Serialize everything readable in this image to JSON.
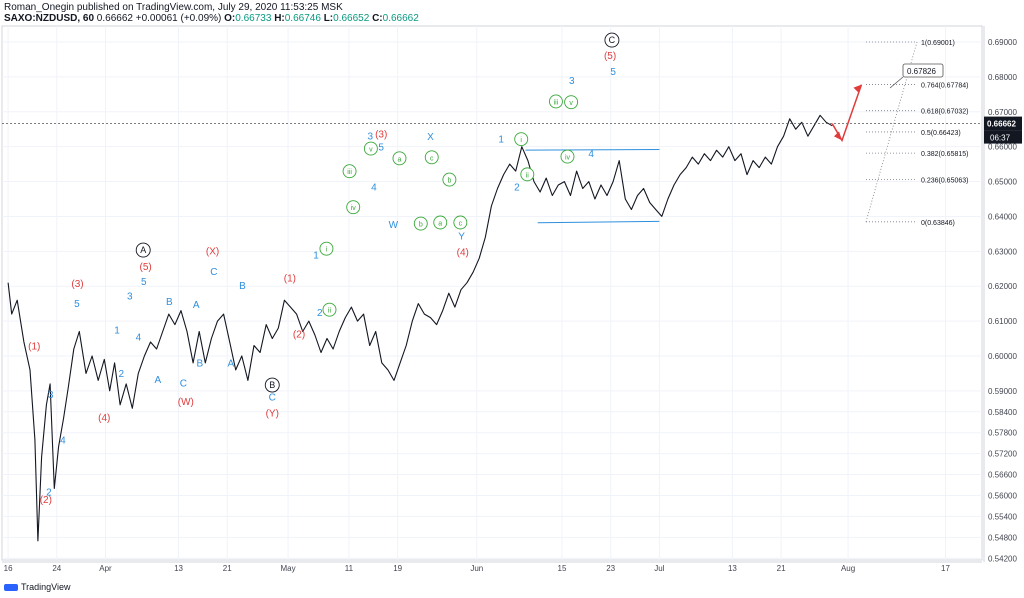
{
  "header": {
    "line1": "Roman_Onegin published on TradingView.com, July 29, 2020 11:53:25 MSK",
    "symbol": "SAXO:NZDUSD, 60",
    "last": "0.66662",
    "change": "+0.00061 (+0.09%)",
    "o_label": "O:",
    "o": "0.66733",
    "h_label": "H:",
    "h": "0.66746",
    "l_label": "L:",
    "l": "0.66652",
    "c_label": "C:",
    "c": "0.66662"
  },
  "watermark": {
    "text": "TradingView"
  },
  "colors": {
    "blue": "#2f8fde",
    "red": "#e03c3c",
    "green": "#3aa83a",
    "black": "#131722",
    "grid": "#f0f3fa",
    "axis": "#d1d4dc"
  },
  "chart_data": {
    "type": "line",
    "symbol": "SAXO:NZDUSD",
    "timeframe": "60",
    "ylim": [
      0.5415,
      0.6946
    ],
    "y_ticks": [
      "0.69000",
      "0.68000",
      "0.67000",
      "0.66000",
      "0.65000",
      "0.64000",
      "0.63000",
      "0.62000",
      "0.61000",
      "0.60000",
      "0.59000",
      "0.58400",
      "0.57800",
      "0.57200",
      "0.56600",
      "0.56000",
      "0.55400",
      "0.54800",
      "0.54200"
    ],
    "x_ticks": [
      {
        "label": "16",
        "t": 0
      },
      {
        "label": "24",
        "t": 8
      },
      {
        "label": "Apr",
        "t": 16
      },
      {
        "label": "13",
        "t": 28
      },
      {
        "label": "21",
        "t": 36
      },
      {
        "label": "May",
        "t": 46
      },
      {
        "label": "11",
        "t": 56
      },
      {
        "label": "19",
        "t": 64
      },
      {
        "label": "Jun",
        "t": 77
      },
      {
        "label": "15",
        "t": 91
      },
      {
        "label": "23",
        "t": 99
      },
      {
        "label": "Jul",
        "t": 107
      },
      {
        "label": "13",
        "t": 119
      },
      {
        "label": "21",
        "t": 127
      },
      {
        "label": "Aug",
        "t": 138
      },
      {
        "label": "17",
        "t": 154
      }
    ],
    "x_range": [
      -1,
      160
    ],
    "price_path": [
      [
        0,
        0.621
      ],
      [
        0.6,
        0.612
      ],
      [
        1.5,
        0.616
      ],
      [
        2.6,
        0.604
      ],
      [
        3.6,
        0.596
      ],
      [
        4.4,
        0.576
      ],
      [
        4.9,
        0.547
      ],
      [
        5.5,
        0.571
      ],
      [
        6.3,
        0.586
      ],
      [
        6.9,
        0.592
      ],
      [
        7.6,
        0.562
      ],
      [
        8.3,
        0.574
      ],
      [
        9.1,
        0.582
      ],
      [
        9.9,
        0.591
      ],
      [
        10.8,
        0.602
      ],
      [
        11.7,
        0.607
      ],
      [
        12.8,
        0.595
      ],
      [
        13.8,
        0.6
      ],
      [
        14.8,
        0.593
      ],
      [
        15.8,
        0.599
      ],
      [
        16.7,
        0.59
      ],
      [
        17.5,
        0.598
      ],
      [
        18.4,
        0.586
      ],
      [
        19.4,
        0.592
      ],
      [
        20.4,
        0.585
      ],
      [
        21.4,
        0.595
      ],
      [
        22.4,
        0.6
      ],
      [
        23.4,
        0.604
      ],
      [
        24.4,
        0.602
      ],
      [
        25.4,
        0.607
      ],
      [
        26.4,
        0.612
      ],
      [
        27.4,
        0.609
      ],
      [
        28.4,
        0.613
      ],
      [
        29.4,
        0.607
      ],
      [
        30.4,
        0.598
      ],
      [
        31.4,
        0.607
      ],
      [
        32.4,
        0.598
      ],
      [
        33.4,
        0.605
      ],
      [
        34.4,
        0.61
      ],
      [
        35.4,
        0.612
      ],
      [
        36.4,
        0.604
      ],
      [
        37.4,
        0.596
      ],
      [
        38.4,
        0.6
      ],
      [
        39.4,
        0.593
      ],
      [
        40.4,
        0.603
      ],
      [
        41.4,
        0.601
      ],
      [
        42.4,
        0.609
      ],
      [
        43.4,
        0.605
      ],
      [
        44.4,
        0.608
      ],
      [
        45.4,
        0.616
      ],
      [
        46.4,
        0.614
      ],
      [
        47.4,
        0.612
      ],
      [
        48.4,
        0.607
      ],
      [
        49.4,
        0.61
      ],
      [
        50.4,
        0.606
      ],
      [
        51.4,
        0.601
      ],
      [
        52.4,
        0.605
      ],
      [
        53.4,
        0.602
      ],
      [
        54.4,
        0.607
      ],
      [
        55.4,
        0.611
      ],
      [
        56.4,
        0.614
      ],
      [
        57.4,
        0.61
      ],
      [
        58.4,
        0.612
      ],
      [
        59.4,
        0.603
      ],
      [
        60.4,
        0.607
      ],
      [
        61.4,
        0.598
      ],
      [
        62.4,
        0.596
      ],
      [
        63.4,
        0.593
      ],
      [
        64.4,
        0.598
      ],
      [
        65.4,
        0.603
      ],
      [
        66.4,
        0.61
      ],
      [
        67.4,
        0.615
      ],
      [
        68.4,
        0.612
      ],
      [
        69.4,
        0.611
      ],
      [
        70.4,
        0.609
      ],
      [
        71.4,
        0.613
      ],
      [
        72.4,
        0.618
      ],
      [
        73.4,
        0.614
      ],
      [
        74.4,
        0.619
      ],
      [
        75.4,
        0.621
      ],
      [
        76.4,
        0.624
      ],
      [
        77.4,
        0.628
      ],
      [
        78.4,
        0.634
      ],
      [
        79.4,
        0.643
      ],
      [
        80.4,
        0.648
      ],
      [
        81.4,
        0.652
      ],
      [
        82.4,
        0.655
      ],
      [
        83.4,
        0.653
      ],
      [
        84.4,
        0.66
      ],
      [
        85.4,
        0.656
      ],
      [
        86.4,
        0.65
      ],
      [
        87.4,
        0.647
      ],
      [
        88.4,
        0.651
      ],
      [
        89.4,
        0.646
      ],
      [
        90.4,
        0.649
      ],
      [
        91.4,
        0.65
      ],
      [
        92.4,
        0.646
      ],
      [
        93.4,
        0.653
      ],
      [
        94.4,
        0.648
      ],
      [
        95.4,
        0.65
      ],
      [
        96.4,
        0.645
      ],
      [
        97.4,
        0.649
      ],
      [
        98.4,
        0.646
      ],
      [
        99.4,
        0.65
      ],
      [
        100.4,
        0.656
      ],
      [
        101.4,
        0.645
      ],
      [
        102.4,
        0.642
      ],
      [
        103.4,
        0.646
      ],
      [
        104.4,
        0.648
      ],
      [
        105.4,
        0.644
      ],
      [
        106.4,
        0.642
      ],
      [
        107.4,
        0.64
      ],
      [
        108.4,
        0.645
      ],
      [
        109.4,
        0.649
      ],
      [
        110.4,
        0.652
      ],
      [
        111.4,
        0.654
      ],
      [
        112.4,
        0.657
      ],
      [
        113.4,
        0.655
      ],
      [
        114.4,
        0.658
      ],
      [
        115.4,
        0.656
      ],
      [
        116.4,
        0.659
      ],
      [
        117.4,
        0.657
      ],
      [
        118.4,
        0.66
      ],
      [
        119.4,
        0.656
      ],
      [
        120.4,
        0.658
      ],
      [
        121.4,
        0.652
      ],
      [
        122.4,
        0.656
      ],
      [
        123.4,
        0.654
      ],
      [
        124.4,
        0.657
      ],
      [
        125.4,
        0.655
      ],
      [
        126.4,
        0.66
      ],
      [
        127.4,
        0.663
      ],
      [
        128.4,
        0.668
      ],
      [
        129.4,
        0.665
      ],
      [
        130.4,
        0.667
      ],
      [
        131.4,
        0.663
      ],
      [
        132.4,
        0.666
      ],
      [
        133.4,
        0.669
      ],
      [
        134.4,
        0.667
      ],
      [
        135.4,
        0.666
      ]
    ],
    "current_price": {
      "value": 0.66662,
      "label": "0.66662",
      "countdown": "06:37"
    },
    "projection": [
      [
        135.4,
        0.6666
      ],
      [
        137,
        0.6618
      ],
      [
        140.2,
        0.6778
      ]
    ],
    "target_label": "0.67826",
    "fib_levels": [
      {
        "label": "1(0.69001)",
        "value": 0.69001
      },
      {
        "label": "0.764(0.67784)",
        "value": 0.67784
      },
      {
        "label": "0.618(0.67032)",
        "value": 0.67032
      },
      {
        "label": "0.5(0.66423)",
        "value": 0.66423
      },
      {
        "label": "0.382(0.65815)",
        "value": 0.65815
      },
      {
        "label": "0.236(0.65063)",
        "value": 0.65063
      },
      {
        "label": "0(0.63846)",
        "value": 0.63846
      }
    ],
    "trend_lines": [
      {
        "from": [
          85,
          0.659
        ],
        "to": [
          107,
          0.6592
        ]
      },
      {
        "from": [
          87,
          0.6382
        ],
        "to": [
          107,
          0.6386
        ]
      }
    ],
    "wave_labels": [
      {
        "text": "(1)",
        "t": 4.3,
        "p": 0.6018,
        "color": "red"
      },
      {
        "text": "(2)",
        "t": 6.2,
        "p": 0.5578,
        "color": "red"
      },
      {
        "text": "2",
        "t": 6.7,
        "p": 0.56,
        "color": "blue"
      },
      {
        "text": "3",
        "t": 7.0,
        "p": 0.588,
        "color": "blue"
      },
      {
        "text": "4",
        "t": 9.0,
        "p": 0.5749,
        "color": "blue"
      },
      {
        "text": "(3)",
        "t": 11.4,
        "p": 0.6198,
        "color": "red"
      },
      {
        "text": "5",
        "t": 11.3,
        "p": 0.614,
        "color": "blue"
      },
      {
        "text": "(4)",
        "t": 15.8,
        "p": 0.5813,
        "color": "red"
      },
      {
        "text": "1",
        "t": 17.9,
        "p": 0.6064,
        "color": "blue"
      },
      {
        "text": "2",
        "t": 18.6,
        "p": 0.594,
        "color": "blue"
      },
      {
        "text": "3",
        "t": 20.0,
        "p": 0.6162,
        "color": "blue"
      },
      {
        "text": "4",
        "t": 21.4,
        "p": 0.6045,
        "color": "blue"
      },
      {
        "text": "5",
        "t": 22.3,
        "p": 0.6204,
        "color": "blue"
      },
      {
        "text": "A",
        "t": 22.2,
        "p": 0.6295,
        "color": "black",
        "circled": true
      },
      {
        "text": "(5)",
        "t": 22.6,
        "p": 0.6246,
        "color": "red"
      },
      {
        "text": "A",
        "t": 24.6,
        "p": 0.5922,
        "color": "blue"
      },
      {
        "text": "B",
        "t": 26.5,
        "p": 0.6146,
        "color": "blue"
      },
      {
        "text": "C",
        "t": 28.8,
        "p": 0.5912,
        "color": "blue"
      },
      {
        "text": "(W)",
        "t": 29.2,
        "p": 0.586,
        "color": "red"
      },
      {
        "text": "B",
        "t": 31.5,
        "p": 0.597,
        "color": "blue"
      },
      {
        "text": "A",
        "t": 30.9,
        "p": 0.6137,
        "color": "blue"
      },
      {
        "text": "(X)",
        "t": 33.6,
        "p": 0.6291,
        "color": "red"
      },
      {
        "text": "C",
        "t": 33.8,
        "p": 0.6232,
        "color": "blue"
      },
      {
        "text": "B",
        "t": 38.5,
        "p": 0.6192,
        "color": "blue"
      },
      {
        "text": "A",
        "t": 36.6,
        "p": 0.597,
        "color": "blue"
      },
      {
        "text": "B",
        "t": 43.4,
        "p": 0.5908,
        "color": "black",
        "circled": true
      },
      {
        "text": "C",
        "t": 43.4,
        "p": 0.5872,
        "color": "blue"
      },
      {
        "text": "(Y)",
        "t": 43.4,
        "p": 0.5826,
        "color": "red"
      },
      {
        "text": "(1)",
        "t": 46.3,
        "p": 0.6214,
        "color": "red"
      },
      {
        "text": "(2)",
        "t": 47.8,
        "p": 0.6053,
        "color": "red"
      },
      {
        "text": "2",
        "t": 51.2,
        "p": 0.6115,
        "color": "blue"
      },
      {
        "text": "ii",
        "t": 52.8,
        "p": 0.6124,
        "color": "green",
        "circled": true
      },
      {
        "text": "i",
        "t": 52.3,
        "p": 0.6299,
        "color": "green",
        "circled": true
      },
      {
        "text": "1",
        "t": 50.6,
        "p": 0.628,
        "color": "blue"
      },
      {
        "text": "iii",
        "t": 56.1,
        "p": 0.6521,
        "color": "green",
        "circled": true
      },
      {
        "text": "iv",
        "t": 56.7,
        "p": 0.6418,
        "color": "green",
        "circled": true
      },
      {
        "text": "4",
        "t": 60.1,
        "p": 0.6475,
        "color": "blue"
      },
      {
        "text": "v",
        "t": 59.6,
        "p": 0.6586,
        "color": "green",
        "circled": true
      },
      {
        "text": "3",
        "t": 59.5,
        "p": 0.662,
        "color": "blue"
      },
      {
        "text": "(3)",
        "t": 61.3,
        "p": 0.6626,
        "color": "red"
      },
      {
        "text": "5",
        "t": 61.3,
        "p": 0.6589,
        "color": "blue"
      },
      {
        "text": "W",
        "t": 63.3,
        "p": 0.6367,
        "color": "blue"
      },
      {
        "text": "a",
        "t": 64.3,
        "p": 0.6558,
        "color": "green",
        "circled": true
      },
      {
        "text": "b",
        "t": 67.8,
        "p": 0.6371,
        "color": "green",
        "circled": true
      },
      {
        "text": "c",
        "t": 69.6,
        "p": 0.6561,
        "color": "green",
        "circled": true
      },
      {
        "text": "X",
        "t": 69.4,
        "p": 0.6619,
        "color": "blue"
      },
      {
        "text": "b",
        "t": 72.5,
        "p": 0.6497,
        "color": "green",
        "circled": true
      },
      {
        "text": "a",
        "t": 71.0,
        "p": 0.6374,
        "color": "green",
        "circled": true
      },
      {
        "text": "c",
        "t": 74.3,
        "p": 0.6374,
        "color": "green",
        "circled": true
      },
      {
        "text": "Y",
        "t": 74.5,
        "p": 0.6334,
        "color": "blue"
      },
      {
        "text": "(4)",
        "t": 74.7,
        "p": 0.6288,
        "color": "red"
      },
      {
        "text": "1",
        "t": 81.0,
        "p": 0.6612,
        "color": "blue"
      },
      {
        "text": "i",
        "t": 84.3,
        "p": 0.6613,
        "color": "green",
        "circled": true
      },
      {
        "text": "ii",
        "t": 85.3,
        "p": 0.6512,
        "color": "green",
        "circled": true
      },
      {
        "text": "2",
        "t": 83.6,
        "p": 0.6474,
        "color": "blue"
      },
      {
        "text": "iii",
        "t": 90.0,
        "p": 0.6721,
        "color": "green",
        "circled": true
      },
      {
        "text": "v",
        "t": 92.5,
        "p": 0.6719,
        "color": "green",
        "circled": true
      },
      {
        "text": "3",
        "t": 92.6,
        "p": 0.6779,
        "color": "blue"
      },
      {
        "text": "iv",
        "t": 91.9,
        "p": 0.6563,
        "color": "green",
        "circled": true
      },
      {
        "text": "C",
        "t": 99.2,
        "p": 0.6897,
        "color": "black",
        "circled": true
      },
      {
        "text": "(5)",
        "t": 98.9,
        "p": 0.6852,
        "color": "red"
      },
      {
        "text": "5",
        "t": 99.4,
        "p": 0.6805,
        "color": "blue"
      },
      {
        "text": "4",
        "t": 95.8,
        "p": 0.657,
        "color": "blue"
      }
    ]
  }
}
